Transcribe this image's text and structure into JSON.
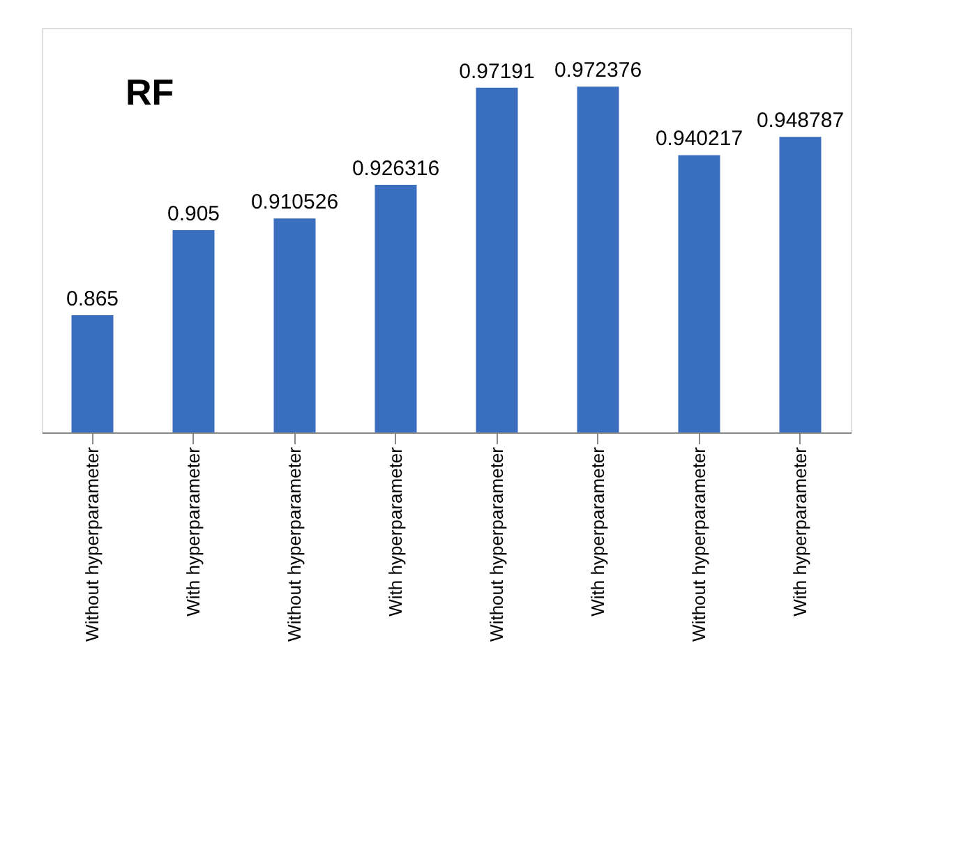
{
  "chart_data": {
    "type": "bar",
    "title": "RF",
    "categories": [
      "Without hyperparameter",
      "With hyperparameter",
      "Without hyperparameter",
      "With hyperparameter",
      "Without hyperparameter",
      "With hyperparameter",
      "Without hyperparameter",
      "With hyperparameter"
    ],
    "values": [
      0.865,
      0.905,
      0.910526,
      0.926316,
      0.97191,
      0.972376,
      0.940217,
      0.948787
    ],
    "color": "#3a6fc0",
    "ylim": [
      0.81,
      1.0
    ],
    "data_labels": true,
    "grid": false,
    "tick_labels": "x"
  }
}
